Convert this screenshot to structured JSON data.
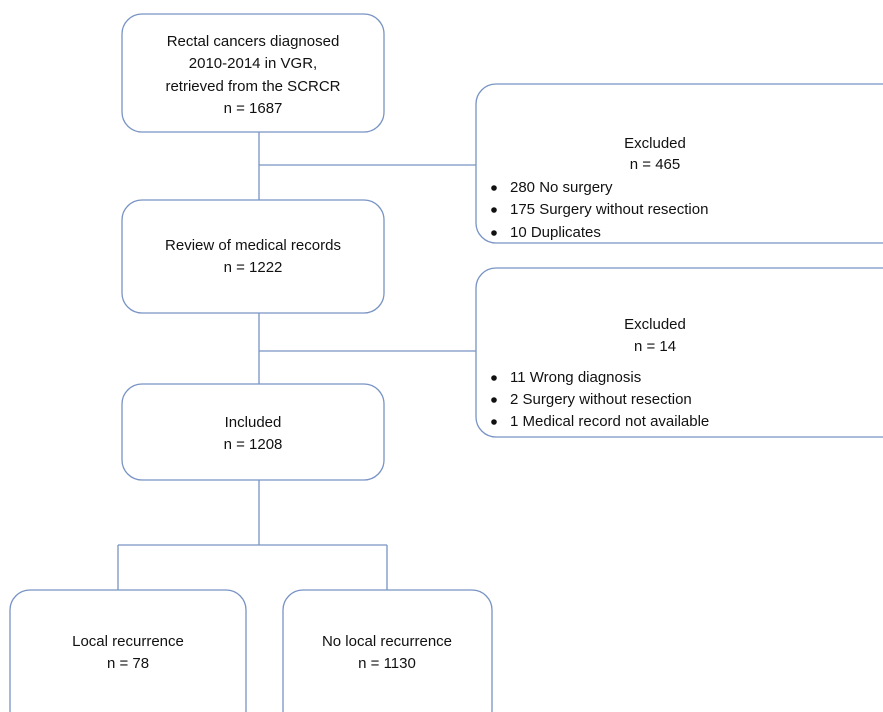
{
  "nodes": [
    {
      "lines": [
        "Rectal cancers diagnosed",
        "2010-2014 in VGR,",
        "retrieved from the SCRCR",
        "n = 1687"
      ]
    },
    {
      "lines": [
        "Review of medical records",
        "n = 1222"
      ]
    },
    {
      "lines": [
        "Included",
        "n = 1208"
      ]
    },
    {
      "lines": [
        "Local recurrence",
        "n = 78"
      ]
    },
    {
      "lines": [
        "No local recurrence",
        "n = 1130"
      ]
    }
  ],
  "exclusions": [
    {
      "title": "Excluded",
      "count": "n = 465",
      "items": [
        "280 No surgery",
        "175 Surgery without resection",
        "10 Duplicates"
      ]
    },
    {
      "title": "Excluded",
      "count": "n = 14",
      "items": [
        "11 Wrong diagnosis",
        "2 Surgery without resection",
        "1 Medical record not available"
      ]
    }
  ]
}
